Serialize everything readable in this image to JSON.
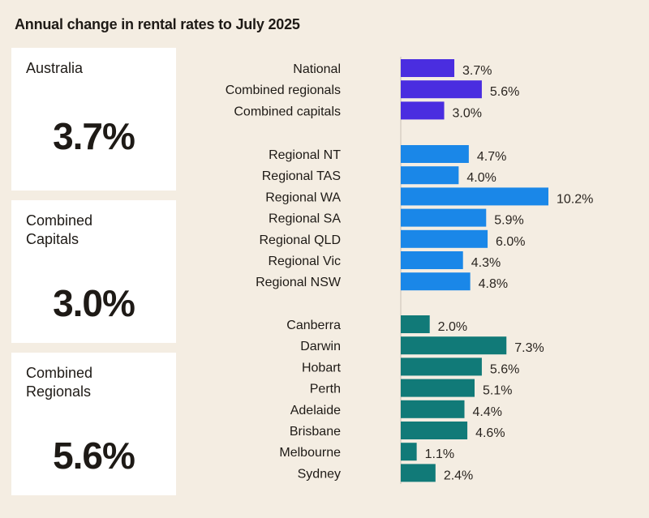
{
  "title": "Annual change in rental rates to July 2025",
  "cards": [
    {
      "label": "Australia",
      "value": "3.7%"
    },
    {
      "label": "Combined Capitals",
      "value": "3.0%"
    },
    {
      "label": "Combined Regionals",
      "value": "5.6%"
    }
  ],
  "chart_data": {
    "type": "bar",
    "orientation": "horizontal",
    "title": "Annual change in rental rates to July 2025",
    "unit": "%",
    "groups": [
      {
        "color": "#4a2de0",
        "categories": [
          "National",
          "Combined regionals",
          "Combined capitals"
        ],
        "values": [
          3.7,
          5.6,
          3.0
        ],
        "labels": [
          "3.7%",
          "5.6%",
          "3.0%"
        ]
      },
      {
        "color": "#1a87e8",
        "categories": [
          "Regional NT",
          "Regional TAS",
          "Regional WA",
          "Regional SA",
          "Regional QLD",
          "Regional Vic",
          "Regional NSW"
        ],
        "values": [
          4.7,
          4.0,
          10.2,
          5.9,
          6.0,
          4.3,
          4.8
        ],
        "labels": [
          "4.7%",
          "4.0%",
          "10.2%",
          "5.9%",
          "6.0%",
          "4.3%",
          "4.8%"
        ]
      },
      {
        "color": "#117a78",
        "categories": [
          "Canberra",
          "Darwin",
          "Hobart",
          "Perth",
          "Adelaide",
          "Brisbane",
          "Melbourne",
          "Sydney"
        ],
        "values": [
          2.0,
          7.3,
          5.6,
          5.1,
          4.4,
          4.6,
          1.1,
          2.4
        ],
        "labels": [
          "2.0%",
          "7.3%",
          "5.6%",
          "5.1%",
          "4.4%",
          "4.6%",
          "1.1%",
          "2.4%"
        ]
      }
    ],
    "xlim": [
      0,
      10.2
    ],
    "grid": false,
    "legend": "none"
  }
}
